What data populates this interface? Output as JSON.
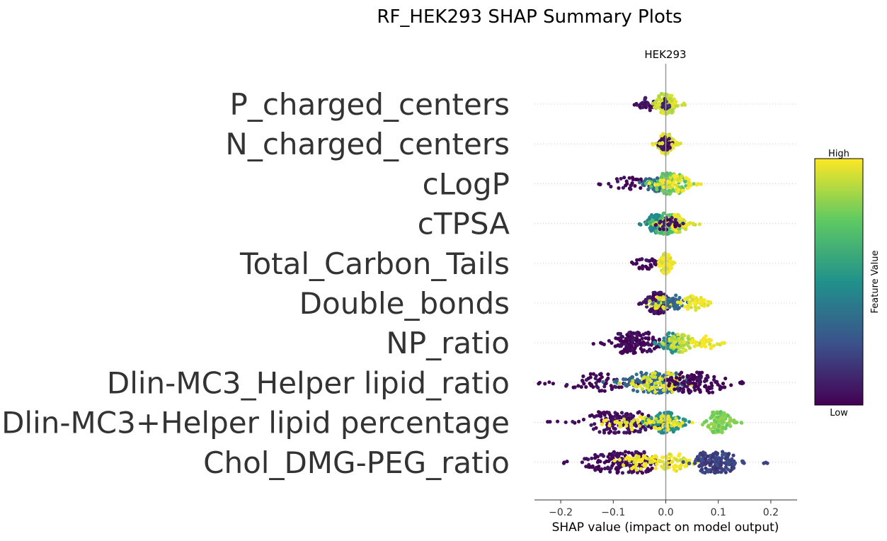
{
  "chart_data": {
    "type": "scatter",
    "subtype": "shap-beeswarm",
    "title": "RF_HEK293 SHAP Summary Plots",
    "subtitle": "HEK293",
    "xlabel": "SHAP value (impact on model output)",
    "xlim": [
      -0.25,
      0.25
    ],
    "xticks": [
      -0.2,
      -0.1,
      0.0,
      0.1,
      0.2
    ],
    "xtick_labels": [
      "−0.2",
      "−0.1",
      "0.0",
      "0.1",
      "0.2"
    ],
    "colorbar": {
      "label": "Feature Value",
      "high_label": "High",
      "low_label": "Low",
      "colors": [
        "#440154",
        "#3b528b",
        "#21918c",
        "#5ec962",
        "#fde725"
      ]
    },
    "features": [
      {
        "name": "P_charged_centers",
        "min": -0.06,
        "max": 0.045,
        "spread": 0.014,
        "clusters": [
          {
            "c": -0.035,
            "w": 0.02,
            "n": 28,
            "v": 0.05
          },
          {
            "c": 0.0,
            "w": 0.018,
            "n": 110,
            "v": 0.92
          },
          {
            "c": 0.0,
            "w": 0.01,
            "n": 14,
            "v": 0.1
          }
        ]
      },
      {
        "name": "N_charged_centers",
        "min": -0.025,
        "max": 0.03,
        "spread": 0.016,
        "clusters": [
          {
            "c": 0.0,
            "w": 0.014,
            "n": 90,
            "v": 0.95
          },
          {
            "c": 0.0,
            "w": 0.012,
            "n": 35,
            "v": 0.05
          }
        ]
      },
      {
        "name": "cLogP",
        "min": -0.14,
        "max": 0.07,
        "spread": 0.02,
        "clusters": [
          {
            "c": -0.07,
            "w": 0.04,
            "n": 30,
            "v": 0.02
          },
          {
            "c": -0.02,
            "w": 0.025,
            "n": 40,
            "v": 0.35
          },
          {
            "c": 0.01,
            "w": 0.03,
            "n": 110,
            "v": 0.75
          },
          {
            "c": 0.02,
            "w": 0.03,
            "n": 50,
            "v": 0.98
          }
        ]
      },
      {
        "name": "cTPSA",
        "min": -0.055,
        "max": 0.065,
        "spread": 0.022,
        "clusters": [
          {
            "c": -0.02,
            "w": 0.02,
            "n": 60,
            "v": 0.45
          },
          {
            "c": 0.0,
            "w": 0.03,
            "n": 90,
            "v": 0.7
          },
          {
            "c": 0.02,
            "w": 0.025,
            "n": 60,
            "v": 0.95
          },
          {
            "c": 0.0,
            "w": 0.03,
            "n": 30,
            "v": 0.05
          }
        ]
      },
      {
        "name": "Total_Carbon_Tails",
        "min": -0.075,
        "max": 0.025,
        "spread": 0.016,
        "clusters": [
          {
            "c": -0.04,
            "w": 0.02,
            "n": 30,
            "v": 0.02
          },
          {
            "c": 0.0,
            "w": 0.01,
            "n": 110,
            "v": 0.97
          }
        ]
      },
      {
        "name": "Double_bonds",
        "min": -0.055,
        "max": 0.085,
        "spread": 0.02,
        "clusters": [
          {
            "c": -0.015,
            "w": 0.02,
            "n": 110,
            "v": 0.05
          },
          {
            "c": -0.01,
            "w": 0.02,
            "n": 30,
            "v": 0.97
          },
          {
            "c": 0.02,
            "w": 0.02,
            "n": 40,
            "v": 0.35
          },
          {
            "c": 0.055,
            "w": 0.025,
            "n": 45,
            "v": 0.98
          }
        ]
      },
      {
        "name": "NP_ratio",
        "min": -0.14,
        "max": 0.115,
        "spread": 0.022,
        "clusters": [
          {
            "c": -0.06,
            "w": 0.04,
            "n": 140,
            "v": 0.02
          },
          {
            "c": 0.01,
            "w": 0.02,
            "n": 70,
            "v": 0.5
          },
          {
            "c": 0.03,
            "w": 0.025,
            "n": 60,
            "v": 0.9
          },
          {
            "c": 0.075,
            "w": 0.025,
            "n": 35,
            "v": 0.98
          }
        ]
      },
      {
        "name": "Dlin-MC3_Helper lipid_ratio",
        "min": -0.25,
        "max": 0.16,
        "spread": 0.026,
        "clusters": [
          {
            "c": -0.13,
            "w": 0.06,
            "n": 60,
            "v": 0.02
          },
          {
            "c": -0.02,
            "w": 0.05,
            "n": 160,
            "v": 0.35
          },
          {
            "c": -0.01,
            "w": 0.05,
            "n": 80,
            "v": 0.95
          },
          {
            "c": 0.06,
            "w": 0.05,
            "n": 120,
            "v": 0.02
          }
        ]
      },
      {
        "name": "Dlin-MC3+Helper lipid percentage",
        "min": -0.225,
        "max": 0.145,
        "spread": 0.026,
        "clusters": [
          {
            "c": -0.09,
            "w": 0.06,
            "n": 140,
            "v": 0.03
          },
          {
            "c": -0.05,
            "w": 0.06,
            "n": 40,
            "v": 0.98
          },
          {
            "c": 0.0,
            "w": 0.03,
            "n": 90,
            "v": 0.5
          },
          {
            "c": 0.0,
            "w": 0.03,
            "n": 50,
            "v": 0.97
          },
          {
            "c": 0.1,
            "w": 0.022,
            "n": 110,
            "v": 0.8
          }
        ]
      },
      {
        "name": "Chol_DMG-PEG_ratio",
        "min": -0.195,
        "max": 0.195,
        "spread": 0.026,
        "clusters": [
          {
            "c": -0.08,
            "w": 0.06,
            "n": 160,
            "v": 0.03
          },
          {
            "c": -0.04,
            "w": 0.05,
            "n": 50,
            "v": 0.98
          },
          {
            "c": 0.015,
            "w": 0.03,
            "n": 60,
            "v": 0.98
          },
          {
            "c": 0.095,
            "w": 0.035,
            "n": 150,
            "v": 0.2
          }
        ]
      }
    ]
  }
}
